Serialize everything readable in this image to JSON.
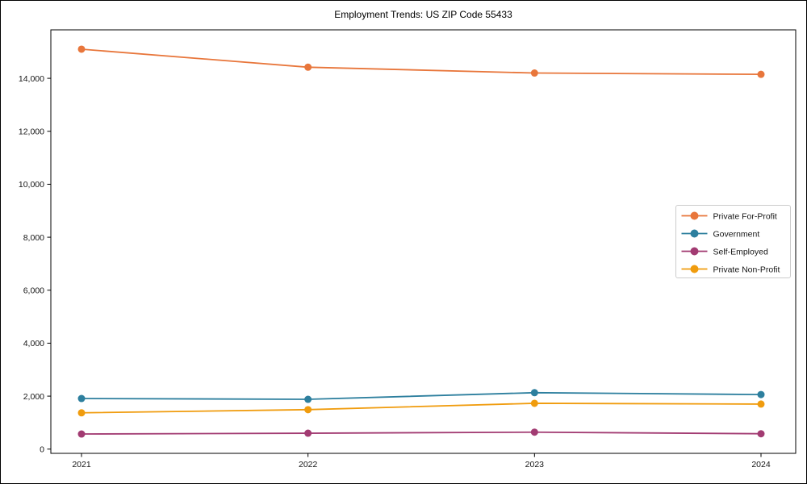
{
  "figure": {
    "title": "Employment Trends: US ZIP Code 55433"
  },
  "chart_data": {
    "type": "line",
    "title": "Employment Trends: US ZIP Code 55433",
    "xlabel": "",
    "ylabel": "",
    "categories": [
      "2021",
      "2022",
      "2023",
      "2024"
    ],
    "series": [
      {
        "name": "Private For-Profit",
        "color": "#e8763b",
        "values": [
          15100,
          14420,
          14200,
          14150
        ]
      },
      {
        "name": "Government",
        "color": "#2d7f9e",
        "values": [
          1910,
          1880,
          2130,
          2060
        ]
      },
      {
        "name": "Self-Employed",
        "color": "#a23b72",
        "values": [
          570,
          600,
          640,
          580
        ]
      },
      {
        "name": "Private Non-Profit",
        "color": "#f09c0e",
        "values": [
          1370,
          1490,
          1730,
          1700
        ]
      }
    ],
    "yticks": [
      0,
      2000,
      4000,
      6000,
      8000,
      10000,
      12000,
      14000
    ],
    "ytick_labels": [
      "0",
      "2,000",
      "4,000",
      "6,000",
      "8,000",
      "10,000",
      "12,000",
      "14,000"
    ],
    "ylim": [
      -160,
      15830
    ],
    "grid": false,
    "legend_position": "center-right",
    "marker": "circle"
  }
}
